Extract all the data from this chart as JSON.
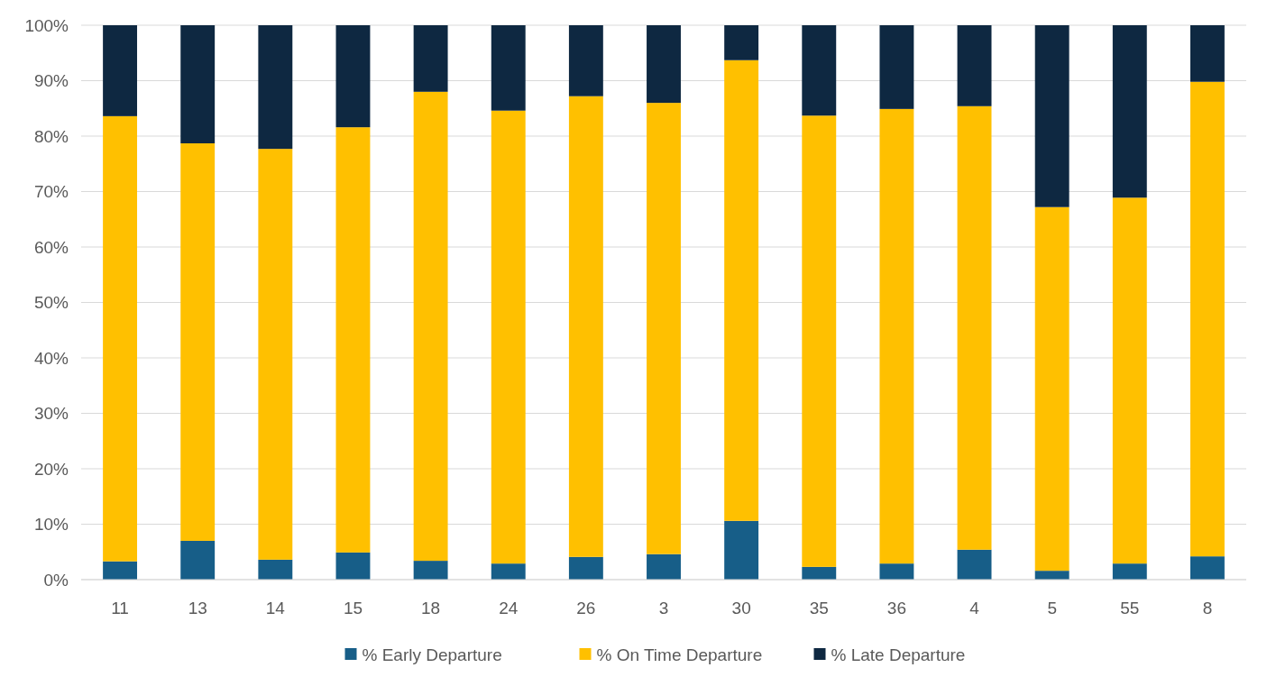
{
  "chart_data": {
    "type": "bar",
    "stacked": true,
    "categories": [
      "11",
      "13",
      "14",
      "15",
      "18",
      "24",
      "26",
      "3",
      "30",
      "35",
      "36",
      "4",
      "5",
      "55",
      "8"
    ],
    "series": [
      {
        "name": "% Early Departure",
        "color": "#175e88",
        "values": [
          3.3,
          7.0,
          3.6,
          4.9,
          3.4,
          2.9,
          4.1,
          4.6,
          10.6,
          2.3,
          2.9,
          5.4,
          1.6,
          2.9,
          4.2
        ]
      },
      {
        "name": "% On Time Departure",
        "color": "#ffc000",
        "values": [
          80.3,
          71.7,
          74.1,
          76.7,
          84.6,
          81.7,
          83.1,
          81.4,
          83.1,
          81.4,
          82.0,
          80.0,
          65.6,
          66.0,
          85.6
        ]
      },
      {
        "name": "% Late Departure",
        "color": "#0e2841",
        "values": [
          16.4,
          21.3,
          22.3,
          18.4,
          12.0,
          15.4,
          12.8,
          14.0,
          6.3,
          16.3,
          15.1,
          14.6,
          32.8,
          31.1,
          10.2
        ]
      }
    ],
    "ylim": [
      0,
      100
    ],
    "yticks": [
      {
        "value": 0,
        "label": "0%"
      },
      {
        "value": 10,
        "label": "10%"
      },
      {
        "value": 20,
        "label": "20%"
      },
      {
        "value": 30,
        "label": "30%"
      },
      {
        "value": 40,
        "label": "40%"
      },
      {
        "value": 50,
        "label": "50%"
      },
      {
        "value": 60,
        "label": "60%"
      },
      {
        "value": 70,
        "label": "70%"
      },
      {
        "value": 80,
        "label": "80%"
      },
      {
        "value": 90,
        "label": "90%"
      },
      {
        "value": 100,
        "label": "100%"
      }
    ],
    "grid": "y",
    "legend": "bottom"
  }
}
